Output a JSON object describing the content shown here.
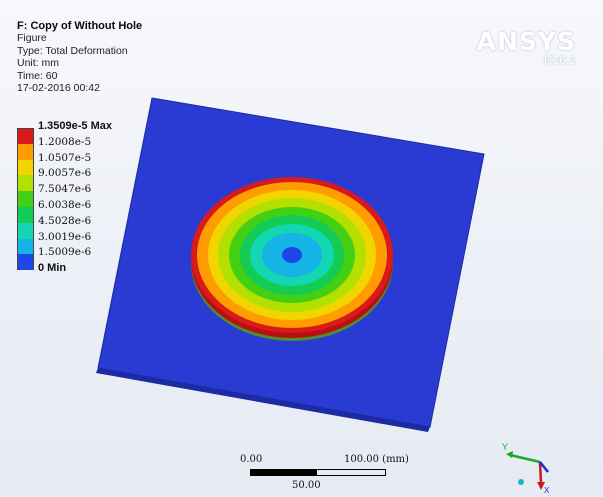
{
  "info": {
    "title": "F: Copy of Without Hole",
    "line2": "Figure",
    "type": "Type: Total Deformation",
    "unit": "Unit: mm",
    "time": "Time: 60",
    "datetime": "17-02-2016 00:42"
  },
  "branding": {
    "name": "ANSYS",
    "version": "R16.2"
  },
  "legend": [
    {
      "label": "1.3509e-5 Max",
      "color": "#d81a1a",
      "bold": true
    },
    {
      "label": "1.2008e-5",
      "color": "#ff9d00",
      "bold": false
    },
    {
      "label": "1.0507e-5",
      "color": "#f1d500",
      "bold": false
    },
    {
      "label": "9.0057e-6",
      "color": "#b2e000",
      "bold": false
    },
    {
      "label": "7.5047e-6",
      "color": "#43cf13",
      "bold": false
    },
    {
      "label": "6.0038e-6",
      "color": "#13cc55",
      "bold": false
    },
    {
      "label": "4.5028e-6",
      "color": "#13d6b2",
      "bold": false
    },
    {
      "label": "3.0019e-6",
      "color": "#15b4e6",
      "bold": false
    },
    {
      "label": "1.5009e-6",
      "color": "#1b48e6",
      "bold": false
    },
    {
      "label": "0 Min",
      "color": null,
      "bold": true
    }
  ],
  "scale_bar": {
    "start": "0.00",
    "end": "100.00 (mm)",
    "mid": "50.00"
  },
  "triad": {
    "y_label": "Y",
    "x_label": "X"
  },
  "colors": {
    "plate": "#2b3bd6",
    "plate_edge": "#1a258f",
    "max": "#d81a1a",
    "min": "#1b48e6"
  }
}
